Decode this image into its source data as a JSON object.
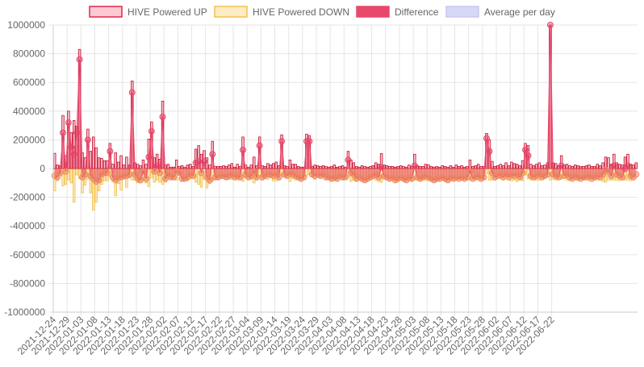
{
  "chart_data": {
    "type": "bar",
    "title": "",
    "xlabel": "",
    "ylabel": "",
    "ylim": [
      -1000000,
      1000000
    ],
    "y_ticks": [
      1000000,
      800000,
      600000,
      400000,
      200000,
      0,
      -200000,
      -400000,
      -600000,
      -800000,
      -1000000
    ],
    "y_tick_labels": [
      "1000000",
      "800000",
      "600000",
      "400000",
      "200000",
      "0",
      "-200000",
      "-400000",
      "-600000",
      "-800000",
      "-1000000"
    ],
    "x_tick_labels": [
      "2021-12-24",
      "2021-12-29",
      "2022-01-03",
      "2022-01-08",
      "2022-01-13",
      "2022-01-18",
      "2022-01-23",
      "2022-01-28",
      "2022-02-02",
      "2022-02-07",
      "2022-02-12",
      "2022-02-17",
      "2022-02-22",
      "2022-02-27",
      "2022-03-04",
      "2022-03-09",
      "2022-03-14",
      "2022-03-19",
      "2022-03-24",
      "2022-03-29",
      "2022-04-03",
      "2022-04-08",
      "2022-04-13",
      "2022-04-18",
      "2022-04-23",
      "2022-04-28",
      "2022-05-03",
      "2022-05-08",
      "2022-05-13",
      "2022-05-18",
      "2022-05-23",
      "2022-05-28",
      "2022-06-02",
      "2022-06-07",
      "2022-06-12",
      "2022-06-17",
      "2022-06-22"
    ],
    "x_start": "2021-12-24",
    "x_end": "2022-06-26",
    "grid": true,
    "legend_position": "top",
    "legend": [
      {
        "name": "HIVE Powered UP",
        "fill": "#ffc9d4",
        "stroke": "#e0284a"
      },
      {
        "name": "HIVE Powered DOWN",
        "fill": "#ffebc4",
        "stroke": "#f2c14e"
      },
      {
        "name": "Difference",
        "fill": "#e8486b",
        "stroke": "#e8486b"
      },
      {
        "name": "Average per day",
        "fill": "#d7d7f7",
        "stroke": "#c8c8ee"
      }
    ],
    "colors": {
      "up_bar": "#c8102e",
      "up_fill": "rgba(232,72,107,0.35)",
      "down_bar": "#f2c14e",
      "down_fill": "rgba(250,215,140,0.6)",
      "diff_line": "#e8486b",
      "diff_fill": "rgba(232,72,107,0.55)",
      "point_up": "rgba(232,72,107,0.45)",
      "point_down": "rgba(240,120,90,0.45)"
    },
    "series": [
      {
        "name": "HIVE Powered UP",
        "values": [
          106000,
          25000,
          20000,
          370000,
          90000,
          400000,
          250000,
          335000,
          295000,
          830000,
          110000,
          75000,
          275000,
          120000,
          220000,
          145000,
          75000,
          70000,
          55000,
          55000,
          175000,
          30000,
          110000,
          45000,
          90000,
          25000,
          80000,
          25000,
          610000,
          40000,
          30000,
          20000,
          60000,
          30000,
          205000,
          325000,
          75000,
          100000,
          65000,
          470000,
          25000,
          30000,
          10000,
          10000,
          60000,
          15000,
          20000,
          10000,
          25000,
          30000,
          15000,
          135000,
          160000,
          100000,
          125000,
          75000,
          25000,
          190000,
          15000,
          15000,
          15000,
          20000,
          15000,
          25000,
          35000,
          10000,
          30000,
          15000,
          220000,
          25000,
          10000,
          25000,
          80000,
          20000,
          220000,
          20000,
          15000,
          35000,
          25000,
          35000,
          45000,
          20000,
          235000,
          20000,
          15000,
          60000,
          30000,
          30000,
          15000,
          10000,
          10000,
          240000,
          230000,
          15000,
          25000,
          20000,
          15000,
          20000,
          15000,
          10000,
          15000,
          25000,
          10000,
          15000,
          20000,
          10000,
          120000,
          60000,
          40000,
          15000,
          10000,
          20000,
          15000,
          10000,
          15000,
          20000,
          40000,
          30000,
          105000,
          25000,
          20000,
          15000,
          15000,
          10000,
          15000,
          20000,
          15000,
          10000,
          25000,
          15000,
          100000,
          20000,
          15000,
          15000,
          30000,
          25000,
          15000,
          10000,
          15000,
          10000,
          20000,
          15000,
          10000,
          20000,
          10000,
          25000,
          15000,
          20000,
          10000,
          15000,
          60000,
          15000,
          20000,
          30000,
          15000,
          15000,
          245000,
          200000,
          50000,
          15000,
          20000,
          30000,
          20000,
          40000,
          20000,
          45000,
          35000,
          30000,
          20000,
          55000,
          175000,
          160000,
          30000,
          20000,
          30000,
          40000,
          20000,
          25000,
          40000,
          1000000,
          40000,
          35000,
          20000,
          90000,
          25000,
          30000,
          20000,
          15000,
          25000,
          20000,
          15000,
          15000,
          20000,
          25000,
          15000,
          15000,
          30000,
          20000,
          40000,
          80000,
          75000,
          30000,
          100000,
          40000,
          30000,
          25000,
          80000,
          100000,
          30000,
          25000,
          40000
        ],
        "diff_values": [
          -50000,
          -60000,
          -30000,
          250000,
          -20000,
          320000,
          150000,
          100000,
          250000,
          760000,
          -60000,
          -40000,
          200000,
          -50000,
          -70000,
          -90000,
          -80000,
          -40000,
          -30000,
          -30000,
          120000,
          -60000,
          -80000,
          -60000,
          -60000,
          -50000,
          -50000,
          -40000,
          530000,
          -40000,
          -70000,
          -80000,
          -20000,
          -70000,
          80000,
          260000,
          -20000,
          20000,
          -30000,
          360000,
          -70000,
          -40000,
          -60000,
          -60000,
          -20000,
          -30000,
          -70000,
          -70000,
          -60000,
          -40000,
          -50000,
          40000,
          50000,
          -30000,
          50000,
          -60000,
          -80000,
          100000,
          -60000,
          -60000,
          -50000,
          -50000,
          -60000,
          -50000,
          -40000,
          -60000,
          -50000,
          -60000,
          130000,
          -40000,
          -60000,
          -50000,
          -20000,
          -60000,
          160000,
          -60000,
          -50000,
          -40000,
          -40000,
          -50000,
          -40000,
          -60000,
          190000,
          -40000,
          -50000,
          -30000,
          -40000,
          -50000,
          -60000,
          -70000,
          -60000,
          190000,
          190000,
          -40000,
          -50000,
          -40000,
          -50000,
          -40000,
          -60000,
          -60000,
          -70000,
          -60000,
          -70000,
          -50000,
          -60000,
          -60000,
          60000,
          -30000,
          -40000,
          -70000,
          -60000,
          -70000,
          -80000,
          -70000,
          -60000,
          -50000,
          -40000,
          -60000,
          10000,
          -50000,
          -60000,
          -70000,
          -60000,
          -80000,
          -70000,
          -60000,
          -70000,
          -80000,
          -60000,
          -70000,
          20000,
          -60000,
          -70000,
          -60000,
          -50000,
          -60000,
          -70000,
          -80000,
          -70000,
          -70000,
          -60000,
          -70000,
          -80000,
          -60000,
          -70000,
          -60000,
          -70000,
          -60000,
          -70000,
          -60000,
          -20000,
          -70000,
          -60000,
          -50000,
          -70000,
          -60000,
          210000,
          120000,
          -30000,
          -60000,
          -50000,
          -40000,
          -60000,
          -40000,
          -60000,
          -40000,
          -50000,
          -40000,
          -60000,
          -30000,
          130000,
          90000,
          -50000,
          -60000,
          -50000,
          -40000,
          -60000,
          -50000,
          -40000,
          1000000,
          -40000,
          -50000,
          -60000,
          20000,
          -50000,
          -40000,
          -60000,
          -70000,
          -50000,
          -60000,
          -70000,
          -60000,
          -60000,
          -50000,
          -70000,
          -60000,
          -50000,
          -60000,
          -40000,
          -10000,
          -20000,
          -50000,
          20000,
          -40000,
          -50000,
          -60000,
          0,
          20000,
          -50000,
          -60000,
          -40000
        ]
      },
      {
        "name": "HIVE Powered DOWN",
        "values": [
          -156000,
          -85000,
          -50000,
          -120000,
          -110000,
          -80000,
          -100000,
          -235000,
          -45000,
          -70000,
          -170000,
          -115000,
          -75000,
          -170000,
          -290000,
          -235000,
          -155000,
          -110000,
          -85000,
          -85000,
          -55000,
          -90000,
          -190000,
          -105000,
          -150000,
          -75000,
          -130000,
          -65000,
          -80000,
          -80000,
          -100000,
          -100000,
          -80000,
          -100000,
          -125000,
          -65000,
          -95000,
          -80000,
          -95000,
          -110000,
          -95000,
          -70000,
          -70000,
          -70000,
          -80000,
          -45000,
          -90000,
          -80000,
          -85000,
          -70000,
          -65000,
          -95000,
          -110000,
          -130000,
          -75000,
          -135000,
          -105000,
          -90000,
          -75000,
          -75000,
          -65000,
          -70000,
          -75000,
          -75000,
          -75000,
          -70000,
          -80000,
          -75000,
          -90000,
          -65000,
          -70000,
          -75000,
          -100000,
          -80000,
          -60000,
          -80000,
          -65000,
          -75000,
          -65000,
          -85000,
          -85000,
          -80000,
          -45000,
          -60000,
          -65000,
          -90000,
          -70000,
          -80000,
          -75000,
          -80000,
          -70000,
          -50000,
          -40000,
          -55000,
          -75000,
          -60000,
          -65000,
          -60000,
          -75000,
          -70000,
          -85000,
          -85000,
          -80000,
          -65000,
          -80000,
          -70000,
          -60000,
          -90000,
          -80000,
          -85000,
          -70000,
          -90000,
          -95000,
          -80000,
          -75000,
          -70000,
          -80000,
          -90000,
          -95000,
          -75000,
          -80000,
          -85000,
          -75000,
          -90000,
          -85000,
          -80000,
          -85000,
          -90000,
          -85000,
          -85000,
          -80000,
          -80000,
          -85000,
          -75000,
          -80000,
          -85000,
          -85000,
          -90000,
          -85000,
          -80000,
          -80000,
          -85000,
          -90000,
          -80000,
          -80000,
          -85000,
          -75000,
          -80000,
          -80000,
          -75000,
          -80000,
          -75000,
          -80000,
          -80000,
          -85000,
          -75000,
          -35000,
          -80000,
          -80000,
          -80000,
          -70000,
          -70000,
          -80000,
          -60000,
          -80000,
          -85000,
          -80000,
          -90000,
          -75000,
          -85000,
          -45000,
          -70000,
          -80000,
          -80000,
          -80000,
          -80000,
          -70000,
          -65000,
          -40000,
          -80000,
          -75000,
          -80000,
          -70000,
          -75000,
          -70000,
          -80000,
          -85000,
          -75000,
          -80000,
          -85000,
          -75000,
          -80000,
          -75000,
          -85000,
          -75000,
          -80000,
          -80000,
          -80000,
          -90000,
          -95000,
          -80000,
          -80000,
          -80000,
          -80000,
          -85000,
          -80000,
          -80000,
          -80000,
          -85000,
          -80000
        ]
      }
    ]
  }
}
